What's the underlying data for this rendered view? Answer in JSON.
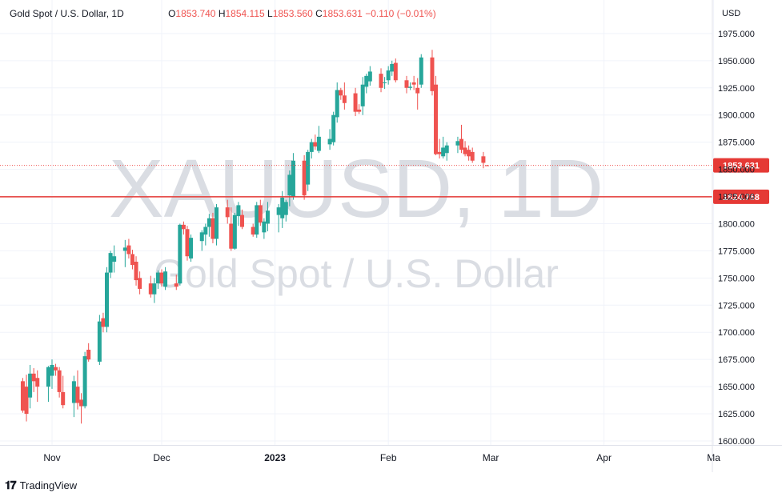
{
  "header": {
    "symbol_title": "Gold Spot / U.S. Dollar, 1D",
    "o_key": "O",
    "o_val": "1853.740",
    "h_key": "H",
    "h_val": "1854.115",
    "l_key": "L",
    "l_val": "1853.560",
    "c_key": "C",
    "c_val": "1853.631",
    "change": "−0.110 (−0.01%)"
  },
  "watermark": {
    "main": "XAUUSD, 1D",
    "sub": "Gold Spot / U.S. Dollar"
  },
  "footer": {
    "brand": "TradingView"
  },
  "colors": {
    "up": "#26a69a",
    "down": "#ef5350",
    "line": "#e53935",
    "grid": "#f0f3fa",
    "watermark": "#dadde3"
  },
  "chart_data": {
    "type": "candlestick",
    "ylabel": "USD",
    "ylim": [
      1600,
      1985
    ],
    "yticks": [
      "1600.000",
      "1625.000",
      "1650.000",
      "1675.000",
      "1700.000",
      "1725.000",
      "1750.000",
      "1775.000",
      "1800.000",
      "1825.000",
      "1850.000",
      "1875.000",
      "1900.000",
      "1925.000",
      "1950.000",
      "1975.000"
    ],
    "xticks": [
      {
        "label": "Nov",
        "date": "2022-11-01"
      },
      {
        "label": "Dec",
        "date": "2022-12-01"
      },
      {
        "label": "2023",
        "date": "2023-01-01",
        "bold": true
      },
      {
        "label": "Feb",
        "date": "2023-02-01"
      },
      {
        "label": "Mar",
        "date": "2023-03-01"
      },
      {
        "label": "Apr",
        "date": "2023-04-01"
      },
      {
        "label": "Ma",
        "date": "2023-05-01"
      }
    ],
    "horizontal_line": {
      "value": 1824.768,
      "label": "1824.768"
    },
    "last_price": {
      "value": 1853.631,
      "label": "1853.631"
    },
    "candles": [
      {
        "d": "2022-10-24",
        "o": 1655,
        "h": 1658,
        "l": 1626,
        "c": 1628
      },
      {
        "d": "2022-10-25",
        "o": 1650,
        "h": 1661,
        "l": 1618,
        "c": 1625
      },
      {
        "d": "2022-10-26",
        "o": 1640,
        "h": 1670,
        "l": 1630,
        "c": 1662
      },
      {
        "d": "2022-10-27",
        "o": 1662,
        "h": 1667,
        "l": 1645,
        "c": 1655
      },
      {
        "d": "2022-10-28",
        "o": 1658,
        "h": 1665,
        "l": 1636,
        "c": 1650
      },
      {
        "d": "2022-10-31",
        "o": 1650,
        "h": 1669,
        "l": 1636,
        "c": 1668
      },
      {
        "d": "2022-11-01",
        "o": 1660,
        "h": 1675,
        "l": 1648,
        "c": 1670
      },
      {
        "d": "2022-11-02",
        "o": 1668,
        "h": 1671,
        "l": 1660,
        "c": 1665
      },
      {
        "d": "2022-11-03",
        "o": 1665,
        "h": 1668,
        "l": 1640,
        "c": 1645
      },
      {
        "d": "2022-11-04",
        "o": 1645,
        "h": 1660,
        "l": 1630,
        "c": 1633
      },
      {
        "d": "2022-11-07",
        "o": 1635,
        "h": 1660,
        "l": 1622,
        "c": 1655
      },
      {
        "d": "2022-11-08",
        "o": 1650,
        "h": 1665,
        "l": 1629,
        "c": 1635
      },
      {
        "d": "2022-11-09",
        "o": 1638,
        "h": 1644,
        "l": 1616,
        "c": 1632
      },
      {
        "d": "2022-11-10",
        "o": 1632,
        "h": 1682,
        "l": 1630,
        "c": 1678
      },
      {
        "d": "2022-11-11",
        "o": 1684,
        "h": 1690,
        "l": 1673,
        "c": 1675
      },
      {
        "d": "2022-11-14",
        "o": 1673,
        "h": 1716,
        "l": 1670,
        "c": 1710
      },
      {
        "d": "2022-11-15",
        "o": 1713,
        "h": 1718,
        "l": 1700,
        "c": 1705
      },
      {
        "d": "2022-11-16",
        "o": 1705,
        "h": 1760,
        "l": 1700,
        "c": 1755
      },
      {
        "d": "2022-11-17",
        "o": 1755,
        "h": 1775,
        "l": 1750,
        "c": 1773
      },
      {
        "d": "2022-11-18",
        "o": 1765,
        "h": 1780,
        "l": 1755,
        "c": 1770
      },
      {
        "d": "2022-11-21",
        "o": 1775,
        "h": 1785,
        "l": 1760,
        "c": 1778
      },
      {
        "d": "2022-11-22",
        "o": 1780,
        "h": 1786,
        "l": 1768,
        "c": 1772
      },
      {
        "d": "2022-11-23",
        "o": 1772,
        "h": 1776,
        "l": 1758,
        "c": 1762
      },
      {
        "d": "2022-11-24",
        "o": 1765,
        "h": 1770,
        "l": 1743,
        "c": 1748
      },
      {
        "d": "2022-11-25",
        "o": 1750,
        "h": 1756,
        "l": 1735,
        "c": 1740
      },
      {
        "d": "2022-11-28",
        "o": 1745,
        "h": 1752,
        "l": 1732,
        "c": 1735
      },
      {
        "d": "2022-11-29",
        "o": 1735,
        "h": 1750,
        "l": 1727,
        "c": 1745
      },
      {
        "d": "2022-11-30",
        "o": 1745,
        "h": 1757,
        "l": 1740,
        "c": 1755
      },
      {
        "d": "2022-12-01",
        "o": 1755,
        "h": 1758,
        "l": 1742,
        "c": 1745
      },
      {
        "d": "2022-12-02",
        "o": 1742,
        "h": 1760,
        "l": 1739,
        "c": 1756
      },
      {
        "d": "2022-12-05",
        "o": 1745,
        "h": 1753,
        "l": 1739,
        "c": 1742
      },
      {
        "d": "2022-12-06",
        "o": 1745,
        "h": 1800,
        "l": 1743,
        "c": 1799
      },
      {
        "d": "2022-12-07",
        "o": 1799,
        "h": 1802,
        "l": 1790,
        "c": 1795
      },
      {
        "d": "2022-12-08",
        "o": 1795,
        "h": 1798,
        "l": 1766,
        "c": 1770
      },
      {
        "d": "2022-12-09",
        "o": 1768,
        "h": 1790,
        "l": 1765,
        "c": 1787
      },
      {
        "d": "2022-12-12",
        "o": 1784,
        "h": 1794,
        "l": 1775,
        "c": 1792
      },
      {
        "d": "2022-12-13",
        "o": 1790,
        "h": 1800,
        "l": 1780,
        "c": 1797
      },
      {
        "d": "2022-12-14",
        "o": 1797,
        "h": 1809,
        "l": 1788,
        "c": 1805
      },
      {
        "d": "2022-12-15",
        "o": 1805,
        "h": 1810,
        "l": 1782,
        "c": 1786
      },
      {
        "d": "2022-12-16",
        "o": 1786,
        "h": 1818,
        "l": 1780,
        "c": 1815
      },
      {
        "d": "2022-12-19",
        "o": 1815,
        "h": 1822,
        "l": 1800,
        "c": 1806
      },
      {
        "d": "2022-12-20",
        "o": 1800,
        "h": 1815,
        "l": 1775,
        "c": 1777
      },
      {
        "d": "2022-12-21",
        "o": 1777,
        "h": 1810,
        "l": 1776,
        "c": 1808
      },
      {
        "d": "2022-12-22",
        "o": 1807,
        "h": 1820,
        "l": 1798,
        "c": 1817
      },
      {
        "d": "2022-12-23",
        "o": 1808,
        "h": 1813,
        "l": 1795,
        "c": 1797
      },
      {
        "d": "2022-12-26",
        "o": 1797,
        "h": 1800,
        "l": 1788,
        "c": 1790
      },
      {
        "d": "2022-12-27",
        "o": 1790,
        "h": 1820,
        "l": 1787,
        "c": 1817
      },
      {
        "d": "2022-12-28",
        "o": 1817,
        "h": 1822,
        "l": 1798,
        "c": 1801
      },
      {
        "d": "2022-12-29",
        "o": 1792,
        "h": 1805,
        "l": 1786,
        "c": 1802
      },
      {
        "d": "2022-12-30",
        "o": 1800,
        "h": 1820,
        "l": 1793,
        "c": 1812
      },
      {
        "d": "2023-01-02",
        "o": 1808,
        "h": 1818,
        "l": 1792,
        "c": 1815
      },
      {
        "d": "2023-01-03",
        "o": 1805,
        "h": 1830,
        "l": 1796,
        "c": 1824
      },
      {
        "d": "2023-01-04",
        "o": 1808,
        "h": 1822,
        "l": 1802,
        "c": 1820
      },
      {
        "d": "2023-01-05",
        "o": 1826,
        "h": 1849,
        "l": 1816,
        "c": 1845
      },
      {
        "d": "2023-01-06",
        "o": 1825,
        "h": 1865,
        "l": 1822,
        "c": 1858
      },
      {
        "d": "2023-01-09",
        "o": 1858,
        "h": 1863,
        "l": 1822,
        "c": 1826
      },
      {
        "d": "2023-01-10",
        "o": 1836,
        "h": 1868,
        "l": 1830,
        "c": 1866
      },
      {
        "d": "2023-01-11",
        "o": 1866,
        "h": 1878,
        "l": 1860,
        "c": 1875
      },
      {
        "d": "2023-01-12",
        "o": 1875,
        "h": 1882,
        "l": 1868,
        "c": 1871
      },
      {
        "d": "2023-01-13",
        "o": 1867,
        "h": 1890,
        "l": 1865,
        "c": 1880
      },
      {
        "d": "2023-01-16",
        "o": 1873,
        "h": 1887,
        "l": 1868,
        "c": 1878
      },
      {
        "d": "2023-01-17",
        "o": 1875,
        "h": 1903,
        "l": 1872,
        "c": 1900
      },
      {
        "d": "2023-01-18",
        "o": 1898,
        "h": 1930,
        "l": 1893,
        "c": 1923
      },
      {
        "d": "2023-01-19",
        "o": 1923,
        "h": 1925,
        "l": 1914,
        "c": 1918
      },
      {
        "d": "2023-01-20",
        "o": 1918,
        "h": 1930,
        "l": 1905,
        "c": 1911
      },
      {
        "d": "2023-01-23",
        "o": 1920,
        "h": 1925,
        "l": 1899,
        "c": 1903
      },
      {
        "d": "2023-01-24",
        "o": 1905,
        "h": 1910,
        "l": 1901,
        "c": 1903
      },
      {
        "d": "2023-01-25",
        "o": 1908,
        "h": 1935,
        "l": 1900,
        "c": 1928
      },
      {
        "d": "2023-01-26",
        "o": 1926,
        "h": 1938,
        "l": 1920,
        "c": 1936
      },
      {
        "d": "2023-01-27",
        "o": 1931,
        "h": 1945,
        "l": 1927,
        "c": 1940
      },
      {
        "d": "2023-01-30",
        "o": 1938,
        "h": 1943,
        "l": 1921,
        "c": 1925
      },
      {
        "d": "2023-01-31",
        "o": 1930,
        "h": 1935,
        "l": 1924,
        "c": 1930
      },
      {
        "d": "2023-02-01",
        "o": 1932,
        "h": 1945,
        "l": 1928,
        "c": 1941
      },
      {
        "d": "2023-02-02",
        "o": 1940,
        "h": 1950,
        "l": 1936,
        "c": 1947
      },
      {
        "d": "2023-02-03",
        "o": 1948,
        "h": 1952,
        "l": 1930,
        "c": 1932
      },
      {
        "d": "2023-02-06",
        "o": 1932,
        "h": 1936,
        "l": 1920,
        "c": 1925
      },
      {
        "d": "2023-02-07",
        "o": 1925,
        "h": 1930,
        "l": 1923,
        "c": 1926
      },
      {
        "d": "2023-02-08",
        "o": 1930,
        "h": 1936,
        "l": 1923,
        "c": 1928
      },
      {
        "d": "2023-02-09",
        "o": 1925,
        "h": 1934,
        "l": 1905,
        "c": 1920
      },
      {
        "d": "2023-02-10",
        "o": 1928,
        "h": 1956,
        "l": 1925,
        "c": 1953
      },
      {
        "d": "2023-02-13",
        "o": 1953,
        "h": 1960,
        "l": 1918,
        "c": 1922
      },
      {
        "d": "2023-02-14",
        "o": 1928,
        "h": 1936,
        "l": 1863,
        "c": 1864
      },
      {
        "d": "2023-02-15",
        "o": 1866,
        "h": 1878,
        "l": 1860,
        "c": 1864
      },
      {
        "d": "2023-02-16",
        "o": 1862,
        "h": 1880,
        "l": 1860,
        "c": 1870
      },
      {
        "d": "2023-02-17",
        "o": 1865,
        "h": 1875,
        "l": 1858,
        "c": 1872
      },
      {
        "d": "2023-02-20",
        "o": 1872,
        "h": 1880,
        "l": 1865,
        "c": 1876
      },
      {
        "d": "2023-02-21",
        "o": 1878,
        "h": 1891,
        "l": 1865,
        "c": 1868
      },
      {
        "d": "2023-02-22",
        "o": 1870,
        "h": 1876,
        "l": 1862,
        "c": 1864
      },
      {
        "d": "2023-02-23",
        "o": 1868,
        "h": 1872,
        "l": 1858,
        "c": 1862
      },
      {
        "d": "2023-02-24",
        "o": 1866,
        "h": 1870,
        "l": 1856,
        "c": 1858
      },
      {
        "d": "2023-02-27",
        "o": 1862,
        "h": 1866,
        "l": 1851,
        "c": 1856
      },
      {
        "d": "2023-02-28",
        "o": 1853.74,
        "h": 1854.115,
        "l": 1853.56,
        "c": 1853.631
      }
    ]
  }
}
